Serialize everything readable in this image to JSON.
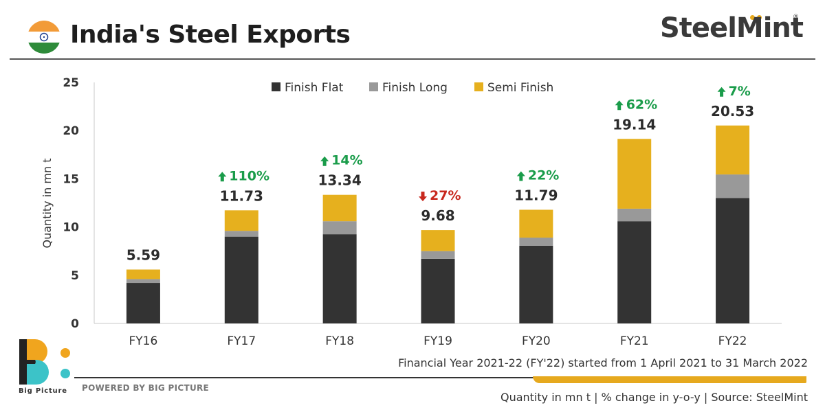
{
  "header": {
    "title": "India's Steel Exports"
  },
  "brand": {
    "name": "SteelMint",
    "reg": "®"
  },
  "colors": {
    "finish_flat": "#333333",
    "finish_long": "#999999",
    "semi_finish": "#e6b01e",
    "up": "#1a9c4a",
    "down": "#c8281e"
  },
  "chart_data": {
    "type": "bar",
    "stacked": true,
    "categories": [
      "FY16",
      "FY17",
      "FY18",
      "FY19",
      "FY20",
      "FY21",
      "FY22"
    ],
    "series": [
      {
        "name": "Finish Flat",
        "values": [
          4.2,
          9.0,
          9.25,
          6.7,
          8.05,
          10.6,
          13.0
        ]
      },
      {
        "name": "Finish Long",
        "values": [
          0.4,
          0.6,
          1.35,
          0.8,
          0.85,
          1.3,
          2.45
        ]
      },
      {
        "name": "Semi Finish",
        "values": [
          0.99,
          2.13,
          2.74,
          2.18,
          2.89,
          7.24,
          5.08
        ]
      }
    ],
    "totals": [
      "5.59",
      "11.73",
      "13.34",
      "9.68",
      "11.79",
      "19.14",
      "20.53"
    ],
    "changes": [
      null,
      {
        "dir": "up",
        "label": "110%"
      },
      {
        "dir": "up",
        "label": "14%"
      },
      {
        "dir": "down",
        "label": "27%"
      },
      {
        "dir": "up",
        "label": "22%"
      },
      {
        "dir": "up",
        "label": "62%"
      },
      {
        "dir": "up",
        "label": "7%"
      }
    ],
    "ylabel": "Quantity in mn t",
    "ylim": [
      0,
      25
    ],
    "yticks": [
      0,
      5,
      10,
      15,
      20,
      25
    ],
    "grid": false,
    "legend_position": "top-center"
  },
  "footer": {
    "note": "Financial Year 2021-22 (FY'22) started from 1 April 2021 to 31 March 2022",
    "powered": "POWERED BY BIG PICTURE",
    "source": "Quantity in mn t  |  % change in y-o-y  |  Source: SteelMint",
    "logo_text": "Big Picture"
  }
}
